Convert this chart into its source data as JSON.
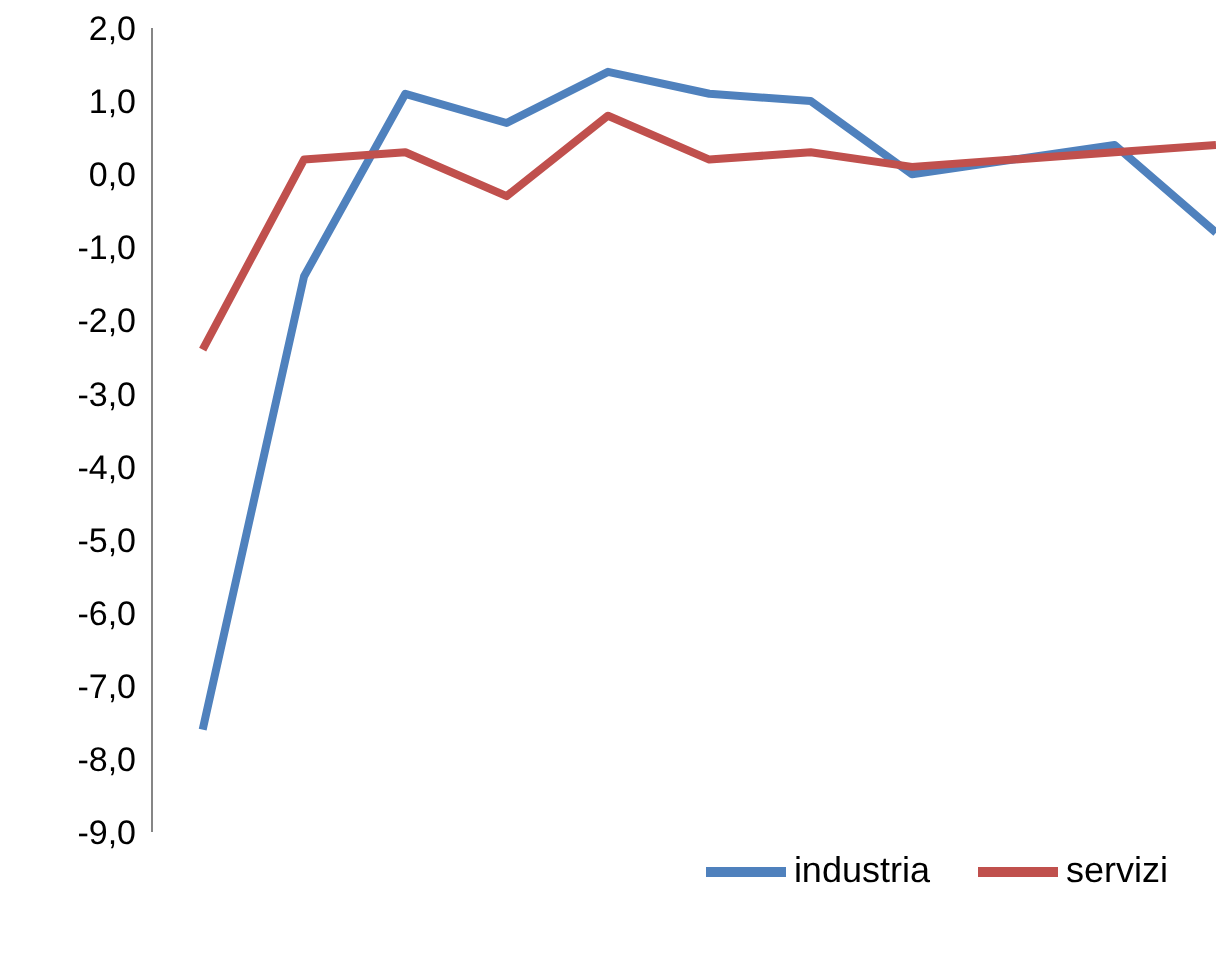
{
  "chart_data": {
    "type": "line",
    "categories": [
      null,
      null,
      null,
      null,
      null,
      null,
      null,
      null,
      null,
      null,
      null
    ],
    "series": [
      {
        "name": "industria",
        "color": "#4f81bd",
        "values": [
          -7.6,
          -1.4,
          1.1,
          0.7,
          1.4,
          1.1,
          1.0,
          0.0,
          0.2,
          0.4,
          -0.8
        ]
      },
      {
        "name": "servizi",
        "color": "#c0504d",
        "values": [
          -2.4,
          0.2,
          0.3,
          -0.3,
          0.8,
          0.2,
          0.3,
          0.1,
          0.2,
          0.3,
          0.4
        ]
      }
    ],
    "ylim": [
      -9,
      2
    ],
    "yticks": [
      {
        "value": -9,
        "label": "-9,0"
      },
      {
        "value": -8,
        "label": "-8,0"
      },
      {
        "value": -7,
        "label": "-7,0"
      },
      {
        "value": -6,
        "label": "-6,0"
      },
      {
        "value": -5,
        "label": "-5,0"
      },
      {
        "value": -4,
        "label": "-4,0"
      },
      {
        "value": -3,
        "label": "-3,0"
      },
      {
        "value": -2,
        "label": "-2,0"
      },
      {
        "value": -1,
        "label": "-1,0"
      },
      {
        "value": 0,
        "label": "0,0"
      },
      {
        "value": 1,
        "label": "1,0"
      },
      {
        "value": 2,
        "label": "2,0"
      }
    ],
    "grid": false,
    "legend": "bottom right",
    "marker": "none",
    "tick_labels": "y"
  }
}
